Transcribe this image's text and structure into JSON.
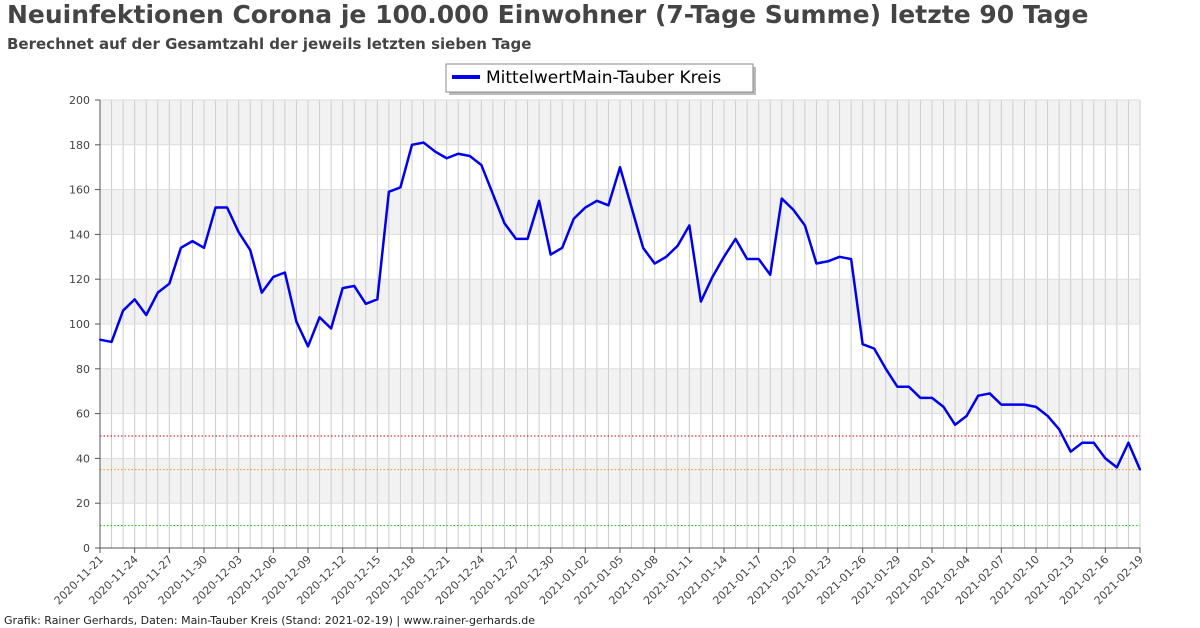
{
  "title": "Neuinfektionen Corona je 100.000 Einwohner (7-Tage Summe) letzte 90 Tage",
  "subtitle": "Berechnet auf der Gesamtzahl der jeweils letzten sieben Tage",
  "footer": "Grafik: Rainer Gerhards, Daten: Main-Tauber Kreis (Stand: 2021-02-19) | www.rainer-gerhards.de",
  "chart_data": {
    "type": "line",
    "title": "Neuinfektionen Corona je 100.000 Einwohner (7-Tage Summe) letzte 90 Tage",
    "subtitle": "Berechnet auf der Gesamtzahl der jeweils letzten sieben Tage",
    "xlabel": "",
    "ylabel": "",
    "ylim": [
      0,
      200
    ],
    "yticks": [
      0,
      20,
      40,
      60,
      80,
      100,
      120,
      140,
      160,
      180,
      200
    ],
    "x_start": "2020-11-21",
    "x_end": "2021-02-19",
    "xtick_labels": [
      "2020-11-21",
      "2020-11-24",
      "2020-11-27",
      "2020-11-30",
      "2020-12-03",
      "2020-12-06",
      "2020-12-09",
      "2020-12-12",
      "2020-12-15",
      "2020-12-18",
      "2020-12-21",
      "2020-12-24",
      "2020-12-27",
      "2020-12-30",
      "2021-01-02",
      "2021-01-05",
      "2021-01-08",
      "2021-01-11",
      "2021-01-14",
      "2021-01-17",
      "2021-01-20",
      "2021-01-23",
      "2021-01-26",
      "2021-01-29",
      "2021-02-01",
      "2021-02-04",
      "2021-02-07",
      "2021-02-10",
      "2021-02-13",
      "2021-02-16",
      "2021-02-19"
    ],
    "grid": true,
    "legend_position": "top-center",
    "series": [
      {
        "name": "MittelwertMain-Tauber Kreis",
        "color": "#0000ee",
        "values": [
          93,
          92,
          106,
          111,
          104,
          114,
          118,
          134,
          137,
          134,
          152,
          152,
          141,
          133,
          114,
          121,
          123,
          101,
          90,
          103,
          98,
          116,
          117,
          109,
          111,
          159,
          161,
          180,
          181,
          177,
          174,
          176,
          175,
          171,
          158,
          145,
          138,
          138,
          155,
          131,
          134,
          147,
          152,
          155,
          153,
          170,
          152,
          134,
          127,
          130,
          135,
          144,
          110,
          121,
          130,
          138,
          129,
          129,
          122,
          156,
          151,
          144,
          127,
          128,
          130,
          129,
          91,
          89,
          80,
          72,
          72,
          67,
          67,
          63,
          55,
          59,
          68,
          69,
          64,
          64,
          64,
          63,
          59,
          53,
          43,
          47,
          47,
          40,
          36,
          47,
          35
        ]
      }
    ],
    "reference_lines": [
      {
        "value": 50,
        "color": "#cc0000"
      },
      {
        "value": 35,
        "color": "#ff9900"
      },
      {
        "value": 10,
        "color": "#00cc00"
      }
    ]
  }
}
